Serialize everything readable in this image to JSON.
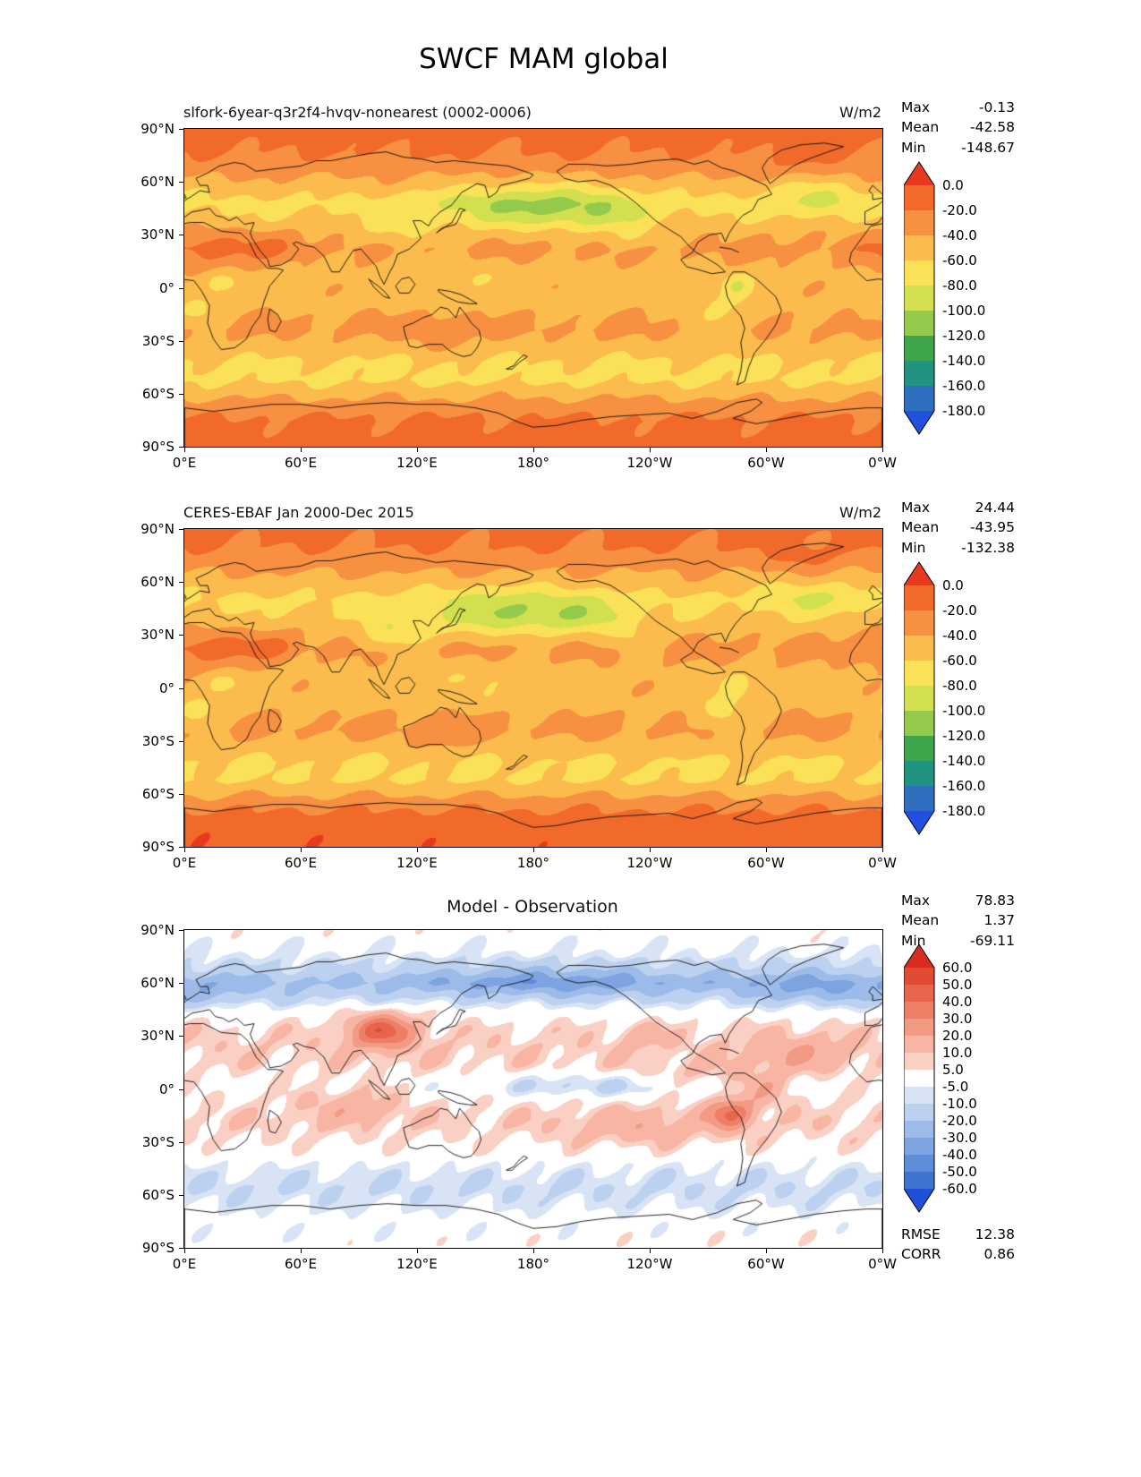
{
  "figure": {
    "title": "SWCF MAM global"
  },
  "axes": {
    "lat_ticks": [
      "90°N",
      "60°N",
      "30°N",
      "0°",
      "30°S",
      "60°S",
      "90°S"
    ],
    "lon_ticks": [
      "0°E",
      "60°E",
      "120°E",
      "180°",
      "120°W",
      "60°W",
      "0°W"
    ]
  },
  "panels": [
    {
      "id": "model",
      "title": "slfork-6year-q3r2f4-hvqv-nonearest (0002-0006)",
      "units": "W/m2",
      "colorbar": "swcf",
      "stats": [
        {
          "label": "Max",
          "value": "-0.13"
        },
        {
          "label": "Mean",
          "value": "-42.58"
        },
        {
          "label": "Min",
          "value": "-148.67"
        }
      ]
    },
    {
      "id": "obs",
      "title": "CERES-EBAF Jan 2000-Dec 2015",
      "units": "W/m2",
      "colorbar": "swcf",
      "stats": [
        {
          "label": "Max",
          "value": "24.44"
        },
        {
          "label": "Mean",
          "value": "-43.95"
        },
        {
          "label": "Min",
          "value": "-132.38"
        }
      ]
    },
    {
      "id": "diff",
      "title": "Model - Observation",
      "units": "",
      "colorbar": "diff",
      "stats": [
        {
          "label": "Max",
          "value": "78.83"
        },
        {
          "label": "Mean",
          "value": "1.37"
        },
        {
          "label": "Min",
          "value": "-69.11"
        }
      ],
      "extra_stats": [
        {
          "label": "RMSE",
          "value": "12.38"
        },
        {
          "label": "CORR",
          "value": "0.86"
        }
      ]
    }
  ],
  "colorbars": {
    "swcf": {
      "tick_labels": [
        "0.0",
        "-20.0",
        "-40.0",
        "-60.0",
        "-80.0",
        "-100.0",
        "-120.0",
        "-140.0",
        "-160.0",
        "-180.0"
      ],
      "levels": [
        0,
        -20,
        -40,
        -60,
        -80,
        -100,
        -120,
        -140,
        -160,
        -180
      ],
      "segment_colors": [
        "#f26a2a",
        "#f79041",
        "#fbbc4d",
        "#fbe157",
        "#d2e04f",
        "#94ca4c",
        "#3fa54b",
        "#209480",
        "#2f6fbe"
      ],
      "extend_high_color": "#e8391f",
      "extend_low_color": "#2050dd"
    },
    "diff": {
      "tick_labels": [
        "60.0",
        "50.0",
        "40.0",
        "30.0",
        "20.0",
        "10.0",
        "5.0",
        "-5.0",
        "-10.0",
        "-20.0",
        "-30.0",
        "-40.0",
        "-50.0",
        "-60.0"
      ],
      "levels": [
        60,
        50,
        40,
        30,
        20,
        10,
        5,
        -5,
        -10,
        -20,
        -30,
        -40,
        -50,
        -60
      ],
      "segment_colors": [
        "#e04b33",
        "#e8654c",
        "#ee7f66",
        "#f39a84",
        "#f8b5a4",
        "#fbd0c4",
        "#ffffff",
        "#d8e4f5",
        "#bcd1ef",
        "#9cbbe8",
        "#7da4e0",
        "#5d8cd8",
        "#3e73d0"
      ],
      "extend_high_color": "#d92b1e",
      "extend_low_color": "#1e50d8"
    }
  },
  "chart_data": [
    {
      "type": "heatmap",
      "subtype": "filled-contour global map",
      "title": "slfork-6year-q3r2f4-hvqv-nonearest (0002-0006)",
      "variable": "SWCF",
      "season": "MAM",
      "region": "global",
      "units": "W/m2",
      "xlabel": "longitude",
      "ylabel": "latitude",
      "lon_range": [
        0,
        360
      ],
      "lat_range": [
        -90,
        90
      ],
      "contour_levels": [
        0,
        -20,
        -40,
        -60,
        -80,
        -100,
        -120,
        -140,
        -160,
        -180
      ],
      "stats": {
        "max": -0.13,
        "mean": -42.58,
        "min": -148.67
      }
    },
    {
      "type": "heatmap",
      "subtype": "filled-contour global map",
      "title": "CERES-EBAF Jan 2000-Dec 2015",
      "variable": "SWCF",
      "season": "MAM",
      "region": "global",
      "units": "W/m2",
      "xlabel": "longitude",
      "ylabel": "latitude",
      "lon_range": [
        0,
        360
      ],
      "lat_range": [
        -90,
        90
      ],
      "contour_levels": [
        0,
        -20,
        -40,
        -60,
        -80,
        -100,
        -120,
        -140,
        -160,
        -180
      ],
      "stats": {
        "max": 24.44,
        "mean": -43.95,
        "min": -132.38
      }
    },
    {
      "type": "heatmap",
      "subtype": "filled-contour global map (difference)",
      "title": "Model - Observation",
      "variable": "SWCF difference",
      "season": "MAM",
      "region": "global",
      "units": "W/m2",
      "xlabel": "longitude",
      "ylabel": "latitude",
      "lon_range": [
        0,
        360
      ],
      "lat_range": [
        -90,
        90
      ],
      "contour_levels": [
        60,
        50,
        40,
        30,
        20,
        10,
        5,
        -5,
        -10,
        -20,
        -30,
        -40,
        -50,
        -60
      ],
      "stats": {
        "max": 78.83,
        "mean": 1.37,
        "min": -69.11,
        "rmse": 12.38,
        "corr": 0.86
      }
    }
  ]
}
